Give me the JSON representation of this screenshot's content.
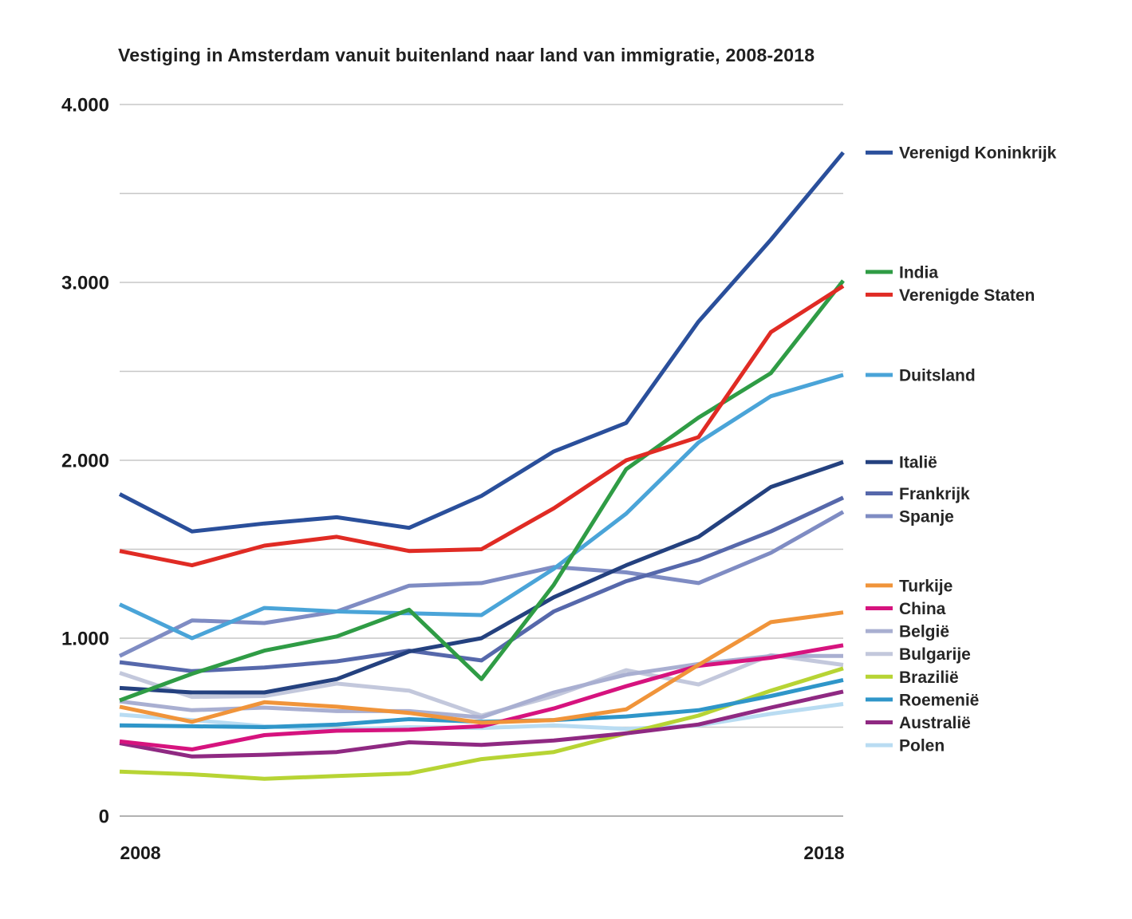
{
  "title": "Vestiging in Amsterdam vanuit buitenland naar land van immigratie, 2008-2018",
  "chart_data": {
    "type": "line",
    "x": [
      2008,
      2009,
      2010,
      2011,
      2012,
      2013,
      2014,
      2015,
      2016,
      2017,
      2018
    ],
    "x_tick_labels": [
      "2008",
      "2018"
    ],
    "xlabel": "",
    "ylabel": "",
    "grid": true,
    "legend_position": "right",
    "y_axis": {
      "min": 0,
      "max": 4000,
      "grid_interval": 500,
      "labeled_ticks": [
        {
          "value": 4000,
          "label": "4.000"
        },
        {
          "value": 3000,
          "label": "3.000"
        },
        {
          "value": 2000,
          "label": "2.000"
        },
        {
          "value": 1000,
          "label": "1.000"
        },
        {
          "value": 0,
          "label": "0"
        }
      ]
    },
    "series": [
      {
        "name": "Verenigd Koninkrijk",
        "color": "#2a4f9b",
        "values": [
          1810,
          1600,
          1645,
          1680,
          1620,
          1800,
          2050,
          2210,
          2780,
          3240,
          3730
        ]
      },
      {
        "name": "India",
        "color": "#2f9c45",
        "values": [
          650,
          800,
          930,
          1010,
          1160,
          770,
          1300,
          1950,
          2240,
          2490,
          3010
        ]
      },
      {
        "name": "Verenigde Staten",
        "color": "#e02b24",
        "values": [
          1490,
          1410,
          1520,
          1570,
          1490,
          1500,
          1730,
          2000,
          2130,
          2720,
          2980
        ]
      },
      {
        "name": "Duitsland",
        "color": "#4aa4d8",
        "values": [
          1190,
          1000,
          1170,
          1150,
          1140,
          1130,
          1390,
          1700,
          2100,
          2360,
          2480
        ]
      },
      {
        "name": "Italië",
        "color": "#24417f",
        "values": [
          720,
          695,
          695,
          770,
          925,
          1000,
          1230,
          1410,
          1570,
          1850,
          1990
        ]
      },
      {
        "name": "Frankrijk",
        "color": "#5668ab",
        "values": [
          865,
          815,
          835,
          870,
          930,
          875,
          1150,
          1320,
          1440,
          1600,
          1790
        ]
      },
      {
        "name": "Spanje",
        "color": "#7f8cc3",
        "values": [
          900,
          1100,
          1085,
          1150,
          1295,
          1310,
          1400,
          1370,
          1310,
          1480,
          1710
        ]
      },
      {
        "name": "Turkije",
        "color": "#f0943a",
        "values": [
          615,
          530,
          640,
          615,
          580,
          525,
          540,
          600,
          850,
          1090,
          1145
        ]
      },
      {
        "name": "China",
        "color": "#d6137e",
        "values": [
          420,
          375,
          455,
          480,
          485,
          505,
          605,
          730,
          845,
          890,
          960
        ]
      },
      {
        "name": "België",
        "color": "#a9afd1",
        "values": [
          645,
          595,
          610,
          590,
          590,
          555,
          695,
          795,
          855,
          900,
          900
        ]
      },
      {
        "name": "Bulgarije",
        "color": "#c3c8dc",
        "values": [
          805,
          670,
          675,
          745,
          705,
          565,
          675,
          820,
          740,
          905,
          850
        ]
      },
      {
        "name": "Brazilië",
        "color": "#b7d434",
        "values": [
          250,
          235,
          210,
          225,
          240,
          320,
          360,
          465,
          565,
          705,
          830
        ]
      },
      {
        "name": "Roemenië",
        "color": "#2f96c9",
        "values": [
          510,
          505,
          500,
          515,
          545,
          530,
          540,
          560,
          595,
          675,
          765
        ]
      },
      {
        "name": "Australië",
        "color": "#8f2982",
        "values": [
          410,
          335,
          345,
          360,
          415,
          400,
          425,
          465,
          515,
          610,
          700
        ]
      },
      {
        "name": "Polen",
        "color": "#b9dcf2",
        "values": [
          570,
          540,
          505,
          485,
          500,
          495,
          510,
          490,
          510,
          575,
          630
        ]
      }
    ],
    "colors": {
      "gridline": "#c7c7c7",
      "zero_line": "#b2b2b2",
      "text": "#1a1a1a"
    }
  }
}
